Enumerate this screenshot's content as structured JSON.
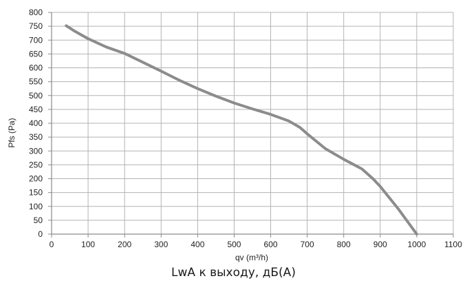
{
  "chart_data": {
    "type": "line",
    "xlabel": "qv (m³/h)",
    "ylabel": "Pfs (Pa)",
    "xlim": [
      0,
      1100
    ],
    "ylim": [
      0,
      800
    ],
    "xticks": [
      "0",
      "100",
      "200",
      "300",
      "400",
      "500",
      "600",
      "700",
      "800",
      "900",
      "1000",
      "1100"
    ],
    "yticks": [
      "0",
      "50",
      "100",
      "150",
      "200",
      "250",
      "300",
      "350",
      "400",
      "450",
      "500",
      "550",
      "600",
      "650",
      "700",
      "750",
      "800"
    ],
    "grid": true,
    "series": [
      {
        "color": "#8c8c8c",
        "x": [
          40,
          60,
          100,
          150,
          200,
          250,
          300,
          350,
          400,
          450,
          500,
          550,
          600,
          650,
          680,
          700,
          750,
          800,
          850,
          880,
          900,
          950,
          1000
        ],
        "y": [
          752,
          735,
          705,
          675,
          652,
          620,
          588,
          555,
          525,
          498,
          473,
          452,
          432,
          408,
          385,
          362,
          308,
          270,
          235,
          200,
          172,
          90,
          0
        ]
      }
    ],
    "caption": "LwA к выходу, дБ(А)"
  }
}
